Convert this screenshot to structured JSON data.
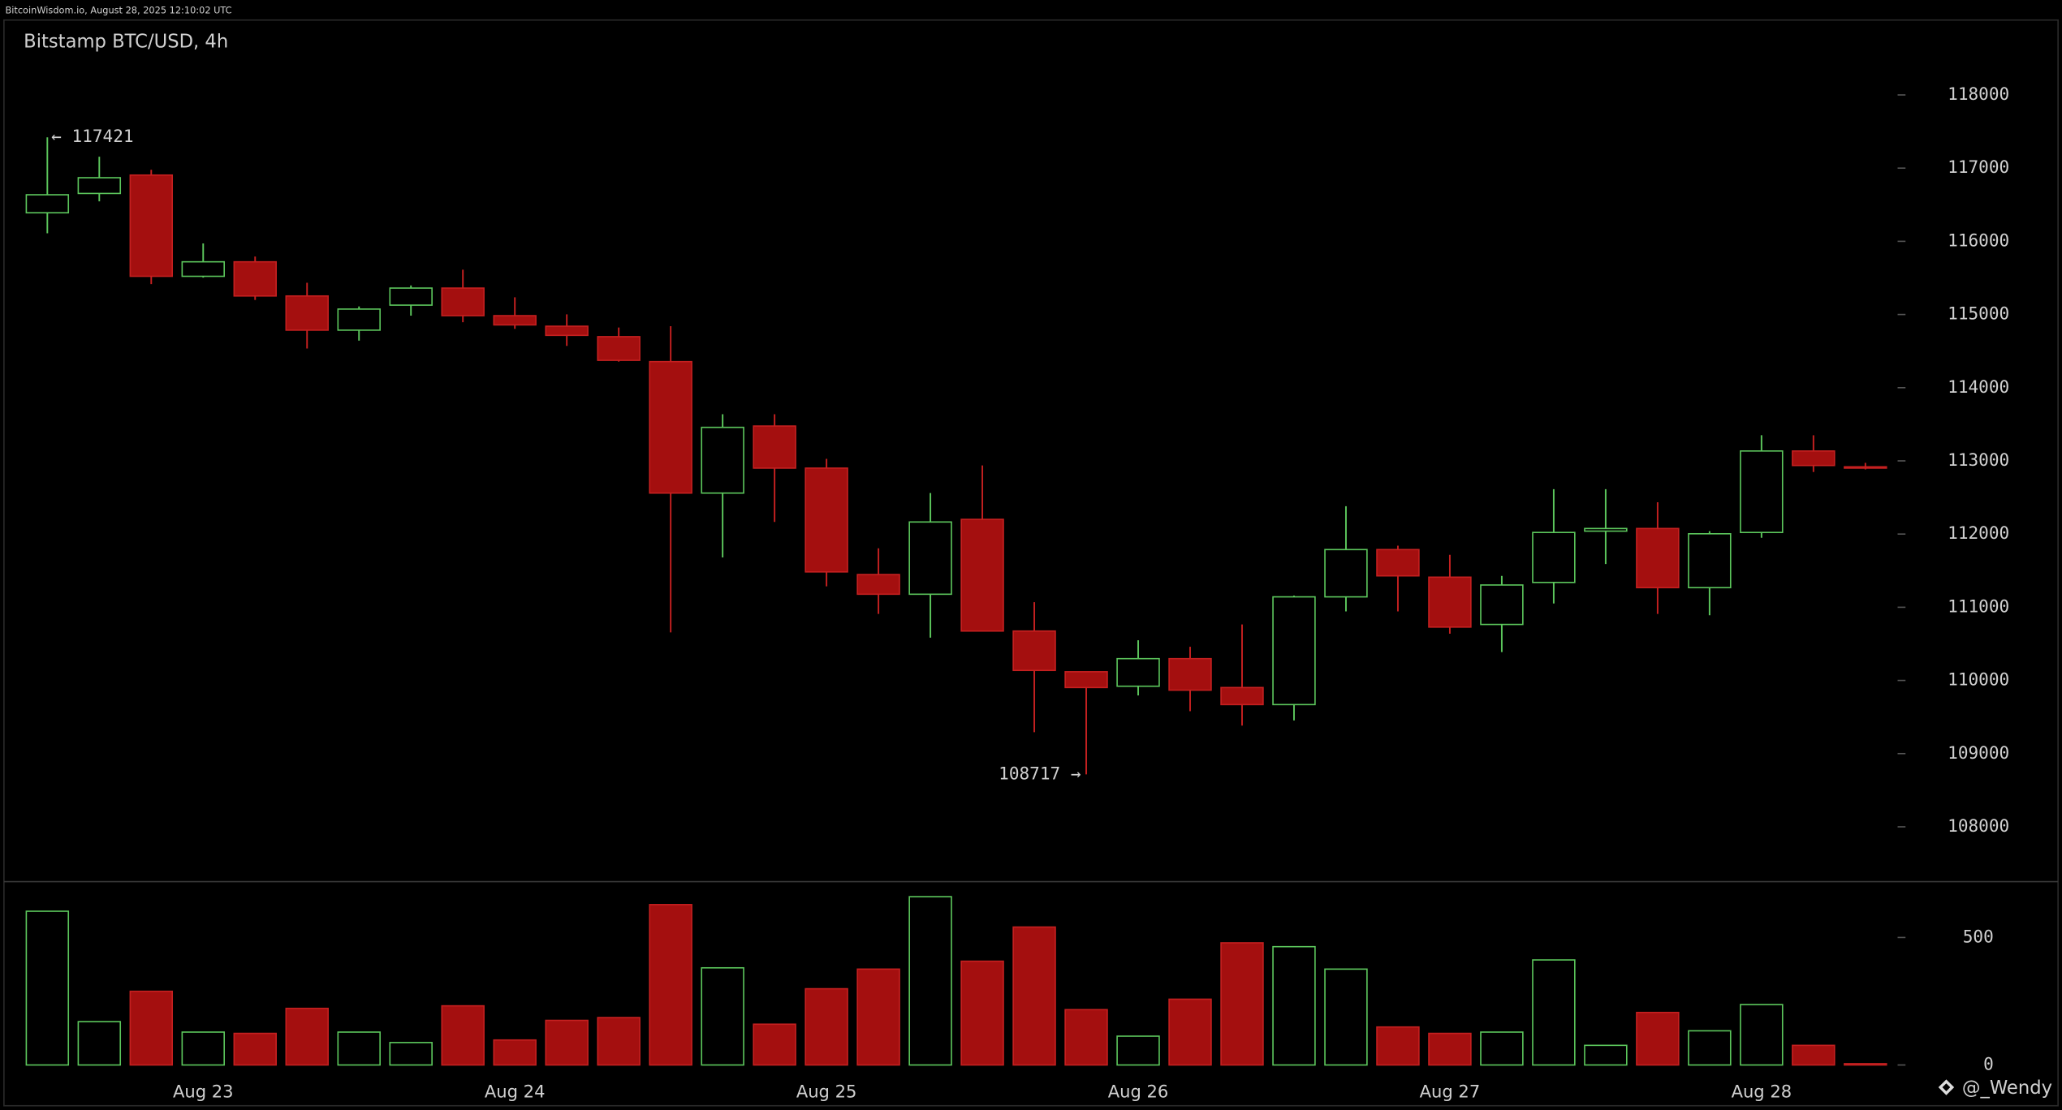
{
  "header": "BitcoinWisdom.io, August 28, 2025 12:10:02 UTC",
  "chart_data": {
    "type": "candlestick",
    "title": "Bitstamp BTC/USD, 4h",
    "categories": [
      null,
      null,
      null,
      "Aug 23",
      null,
      null,
      null,
      null,
      null,
      "Aug 24",
      null,
      null,
      null,
      null,
      null,
      "Aug 25",
      null,
      null,
      null,
      null,
      null,
      "Aug 26",
      null,
      null,
      null,
      null,
      null,
      "Aug 27",
      null,
      null,
      null,
      null,
      null,
      "Aug 28",
      null,
      null
    ],
    "open": [
      116390,
      116654,
      116905,
      115522,
      115720,
      115253,
      114786,
      115128,
      115361,
      114984,
      114840,
      114697,
      114356,
      112560,
      113476,
      112901,
      111447,
      111178,
      112201,
      110675,
      110119,
      109921,
      110298,
      109903,
      109670,
      111142,
      111788,
      111411,
      110765,
      111339,
      112040,
      112076,
      111268,
      112022,
      113135,
      112919
    ],
    "high": [
      117421,
      117156,
      116977,
      115971,
      115792,
      115433,
      115110,
      115397,
      115612,
      115235,
      115002,
      114822,
      114840,
      113637,
      113637,
      113027,
      111806,
      112560,
      112937,
      111070,
      110119,
      110549,
      110460,
      110765,
      111160,
      112381,
      111842,
      111716,
      111429,
      112614,
      112614,
      112435,
      112040,
      113350,
      113350,
      112973
    ],
    "low": [
      116110,
      116546,
      115415,
      115504,
      115199,
      114535,
      114643,
      114984,
      114894,
      114804,
      114571,
      114356,
      110657,
      111681,
      112165,
      111286,
      110909,
      110585,
      110675,
      109293,
      108717,
      109795,
      109580,
      109383,
      109454,
      110944,
      110944,
      110639,
      110388,
      111052,
      111591,
      110909,
      110891,
      111950,
      112848,
      112883
    ],
    "close": [
      116636,
      116869,
      115522,
      115720,
      115253,
      114786,
      115074,
      115361,
      114984,
      114858,
      114715,
      114374,
      112560,
      113458,
      112901,
      111483,
      111178,
      112165,
      110675,
      110137,
      109903,
      110298,
      109867,
      109670,
      111142,
      111788,
      111429,
      110729,
      111304,
      112022,
      112076,
      111268,
      112004,
      113135,
      112937,
      112901
    ],
    "volume": [
      603,
      170,
      289,
      129,
      124,
      222,
      129,
      88,
      232,
      98,
      175,
      186,
      629,
      381,
      160,
      299,
      376,
      660,
      407,
      541,
      217,
      113,
      258,
      479,
      464,
      376,
      149,
      124,
      129,
      412,
      77,
      206,
      134,
      237,
      77,
      5
    ],
    "up_color": "#5cc65c",
    "down_color": "#a40f0f",
    "ylim": [
      107260,
      119000
    ],
    "yticks": [
      108000,
      109000,
      110000,
      111000,
      112000,
      113000,
      114000,
      115000,
      116000,
      117000,
      118000
    ],
    "y2lim": [
      0,
      700
    ],
    "y2ticks": [
      0,
      500
    ],
    "annotations": [
      "← 117421",
      "108717 →"
    ],
    "watermark": "@_Wendy"
  }
}
